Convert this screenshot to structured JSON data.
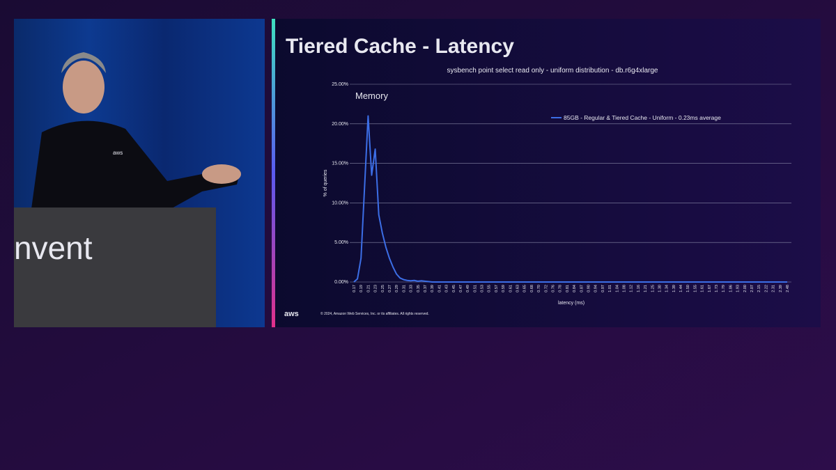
{
  "slide": {
    "title": "Tiered Cache - Latency",
    "footer": "© 2024, Amazon Web Services, Inc. or its affiliates. All rights reserved.",
    "logo": "aws"
  },
  "stage": {
    "podium_text": "nvent",
    "shirt_logo": "aws"
  },
  "chart_data": {
    "type": "line",
    "title": "sysbench point select read only - uniform distribution - db.r6g4xlarge",
    "annotation": "Memory",
    "x_label": "latency (ms)",
    "y_label": "% of queries",
    "categories": [
      "0.17",
      null,
      "0.19",
      null,
      "0.21",
      null,
      "0.23",
      null,
      "0.25",
      null,
      "0.27",
      null,
      "0.29",
      null,
      "0.31",
      null,
      "0.33",
      null,
      "0.35",
      null,
      "0.37",
      null,
      "0.39",
      null,
      "0.41",
      null,
      "0.43",
      null,
      "0.45",
      null,
      "0.47",
      null,
      "0.49",
      null,
      "0.51",
      null,
      "0.53",
      null,
      "0.55",
      null,
      "0.57",
      null,
      "0.59",
      null,
      "0.61",
      null,
      "0.63",
      null,
      "0.65",
      null,
      "0.68",
      null,
      "0.70",
      null,
      "0.72",
      null,
      "0.76",
      null,
      "0.78",
      null,
      "0.81",
      null,
      "0.84",
      null,
      "0.87",
      null,
      "0.90",
      null,
      "0.94",
      null,
      "0.97",
      null,
      "1.01",
      null,
      "1.04",
      null,
      "1.08",
      null,
      "1.12",
      null,
      "1.16",
      null,
      "1.21",
      null,
      "1.25",
      null,
      "1.30",
      null,
      "1.34",
      null,
      "1.39",
      null,
      "1.44",
      null,
      "1.50",
      null,
      "1.55",
      null,
      "1.61",
      null,
      "1.67",
      null,
      "1.73",
      null,
      "1.79",
      null,
      "1.86",
      null,
      "1.93",
      null,
      "2.00",
      null,
      "2.07",
      null,
      "2.15",
      null,
      "2.22",
      null,
      "2.31",
      null,
      "2.39",
      null,
      "2.48"
    ],
    "series": [
      {
        "name": "85GB - Regular & Tiered Cache - Uniform  - 0.23ms average",
        "color": "#3c6ee6",
        "values": [
          0,
          0.4,
          3.0,
          12.0,
          21.0,
          13.5,
          16.8,
          8.5,
          6.2,
          4.4,
          3.0,
          1.9,
          1.0,
          0.5,
          0.3,
          0.2,
          0.15,
          0.2,
          0.1,
          0.15,
          0.1,
          0.05,
          0,
          0,
          0,
          0,
          0,
          0,
          0,
          0,
          0,
          0,
          0,
          0,
          0,
          0,
          0,
          0,
          0,
          0,
          0,
          0,
          0,
          0,
          0,
          0,
          0,
          0,
          0,
          0,
          0,
          0,
          0,
          0,
          0,
          0,
          0,
          0,
          0,
          0,
          0,
          0,
          0,
          0,
          0,
          0,
          0,
          0,
          0,
          0,
          0,
          0,
          0,
          0,
          0,
          0,
          0,
          0,
          0,
          0,
          0,
          0,
          0,
          0,
          0,
          0,
          0,
          0,
          0,
          0,
          0,
          0,
          0,
          0,
          0,
          0,
          0,
          0,
          0,
          0,
          0,
          0,
          0,
          0,
          0,
          0,
          0,
          0,
          0,
          0,
          0,
          0,
          0,
          0,
          0,
          0,
          0,
          0,
          0,
          0,
          0,
          0,
          0
        ]
      }
    ],
    "ylim": [
      0,
      25
    ],
    "yticks": [
      {
        "value": 0,
        "label": "0.00%"
      },
      {
        "value": 5,
        "label": "5.00%"
      },
      {
        "value": 10,
        "label": "10.00%"
      },
      {
        "value": 15,
        "label": "15.00%"
      },
      {
        "value": 20,
        "label": "20.00%"
      },
      {
        "value": 25,
        "label": "25.00%"
      }
    ],
    "grid": true,
    "legend": "top-right"
  }
}
